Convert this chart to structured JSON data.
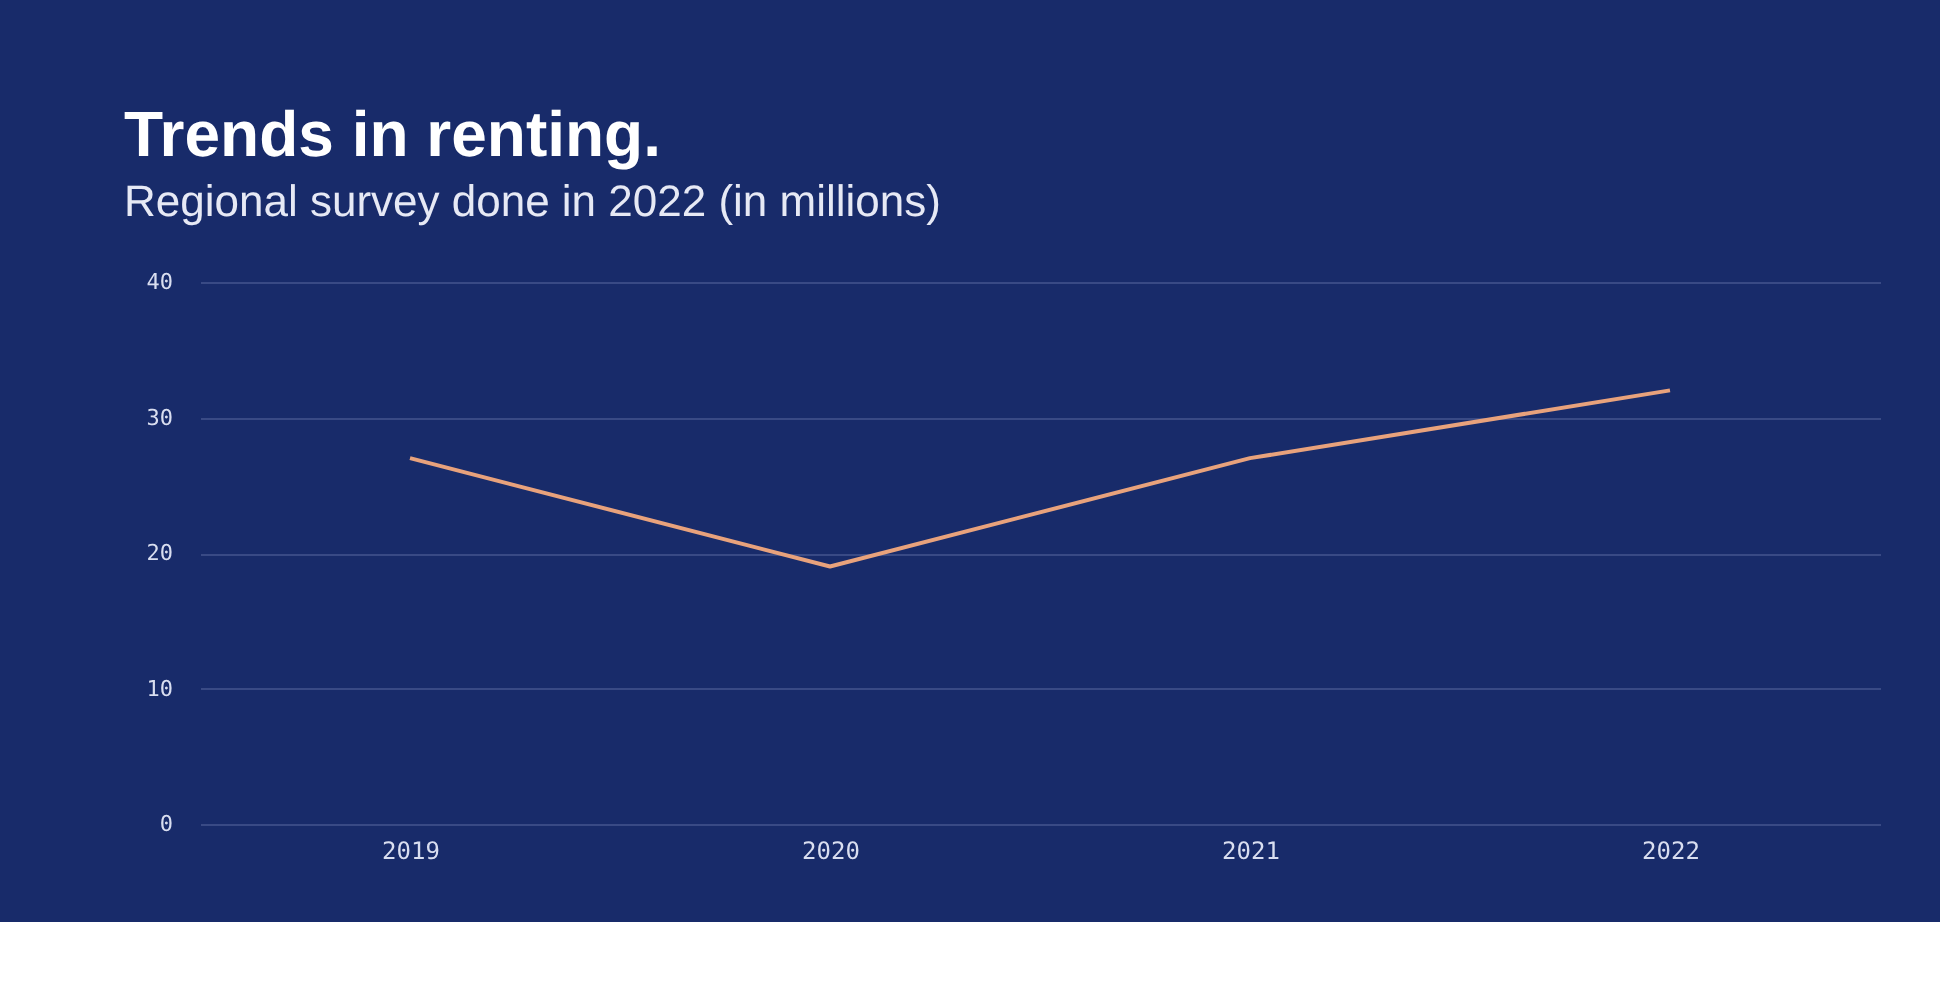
{
  "chart_data": {
    "type": "line",
    "title": "Trends in renting.",
    "subtitle": "Regional survey done in 2022 (in millions)",
    "categories": [
      "2019",
      "2020",
      "2021",
      "2022"
    ],
    "series": [
      {
        "color": "#e8a27c",
        "values": [
          27,
          19,
          27,
          32
        ]
      }
    ],
    "ylim": [
      0,
      40
    ],
    "yticks": [
      0,
      10,
      20,
      30,
      40
    ],
    "grid": "y",
    "marker": "none",
    "line_style": "solid"
  }
}
